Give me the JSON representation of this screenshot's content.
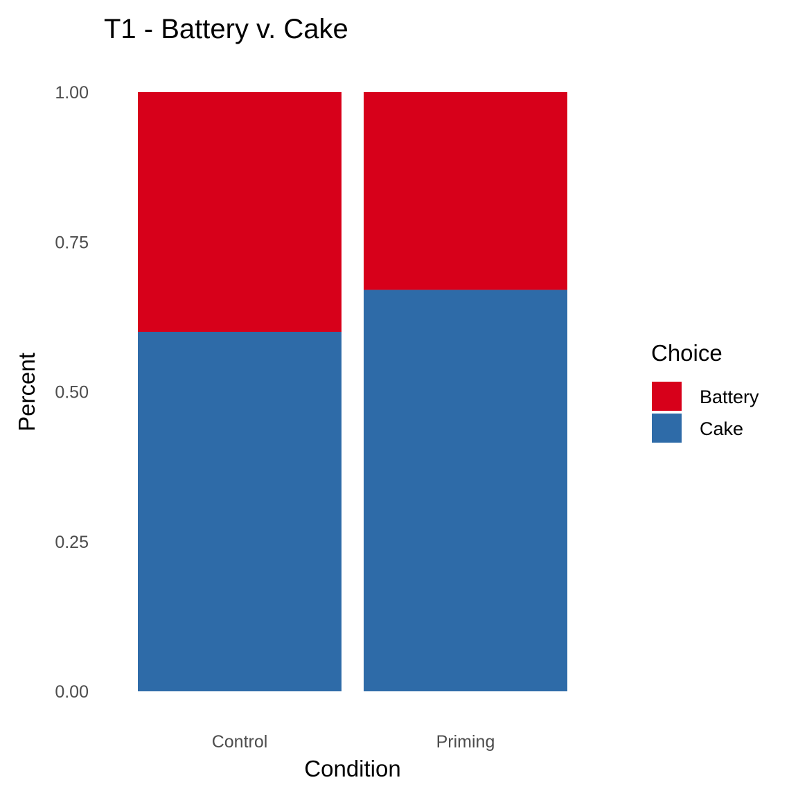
{
  "chart_data": {
    "type": "bar",
    "stacked": true,
    "title": "T1 - Battery v. Cake",
    "xlabel": "Condition",
    "ylabel": "Percent",
    "categories": [
      "Control",
      "Priming"
    ],
    "series": [
      {
        "name": "Cake",
        "color": "#2E6BA8",
        "values": [
          0.6,
          0.67
        ]
      },
      {
        "name": "Battery",
        "color": "#D7001A",
        "values": [
          0.4,
          0.33
        ]
      }
    ],
    "ylim": [
      0,
      1
    ],
    "yticks": [
      "0.00",
      "0.25",
      "0.50",
      "0.75",
      "1.00"
    ],
    "ytick_values": [
      0,
      0.25,
      0.5,
      0.75,
      1.0
    ],
    "grid": false,
    "legend": {
      "title": "Choice",
      "position": "right",
      "items": [
        {
          "name": "Battery",
          "color": "#D7001A"
        },
        {
          "name": "Cake",
          "color": "#2E6BA8"
        }
      ]
    }
  }
}
